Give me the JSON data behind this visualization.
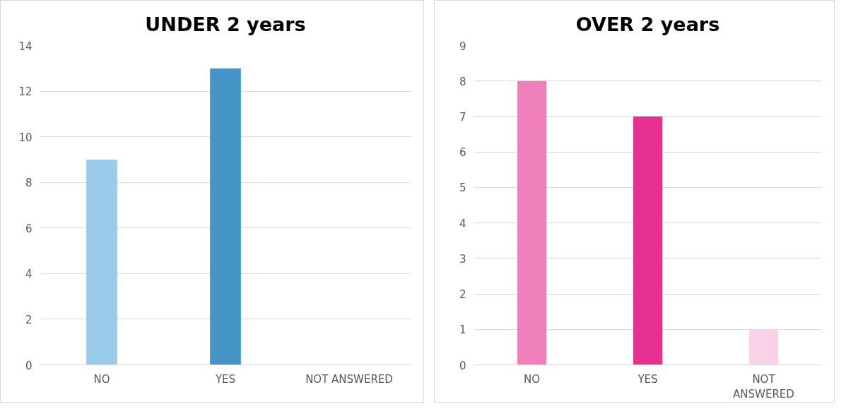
{
  "chart_data": [
    {
      "type": "bar",
      "title": "UNDER 2 years",
      "categories": [
        "NO",
        "YES",
        "NOT ANSWERED"
      ],
      "values": [
        9,
        13,
        0
      ],
      "colors": [
        "#9acbea",
        "#4495c6",
        "#c9e2f4"
      ],
      "ylim": [
        0,
        14
      ],
      "yticks": [
        0,
        2,
        4,
        6,
        8,
        10,
        12,
        14
      ],
      "grid": "y"
    },
    {
      "type": "bar",
      "title": "OVER 2 years",
      "categories": [
        "NO",
        "YES",
        "NOT ANSWERED"
      ],
      "values": [
        8,
        7,
        1
      ],
      "colors": [
        "#ef80bb",
        "#e5308f",
        "#f8d2e7"
      ],
      "ylim": [
        0,
        9
      ],
      "yticks": [
        0,
        1,
        2,
        3,
        4,
        5,
        6,
        7,
        8,
        9
      ],
      "grid": "y"
    }
  ]
}
